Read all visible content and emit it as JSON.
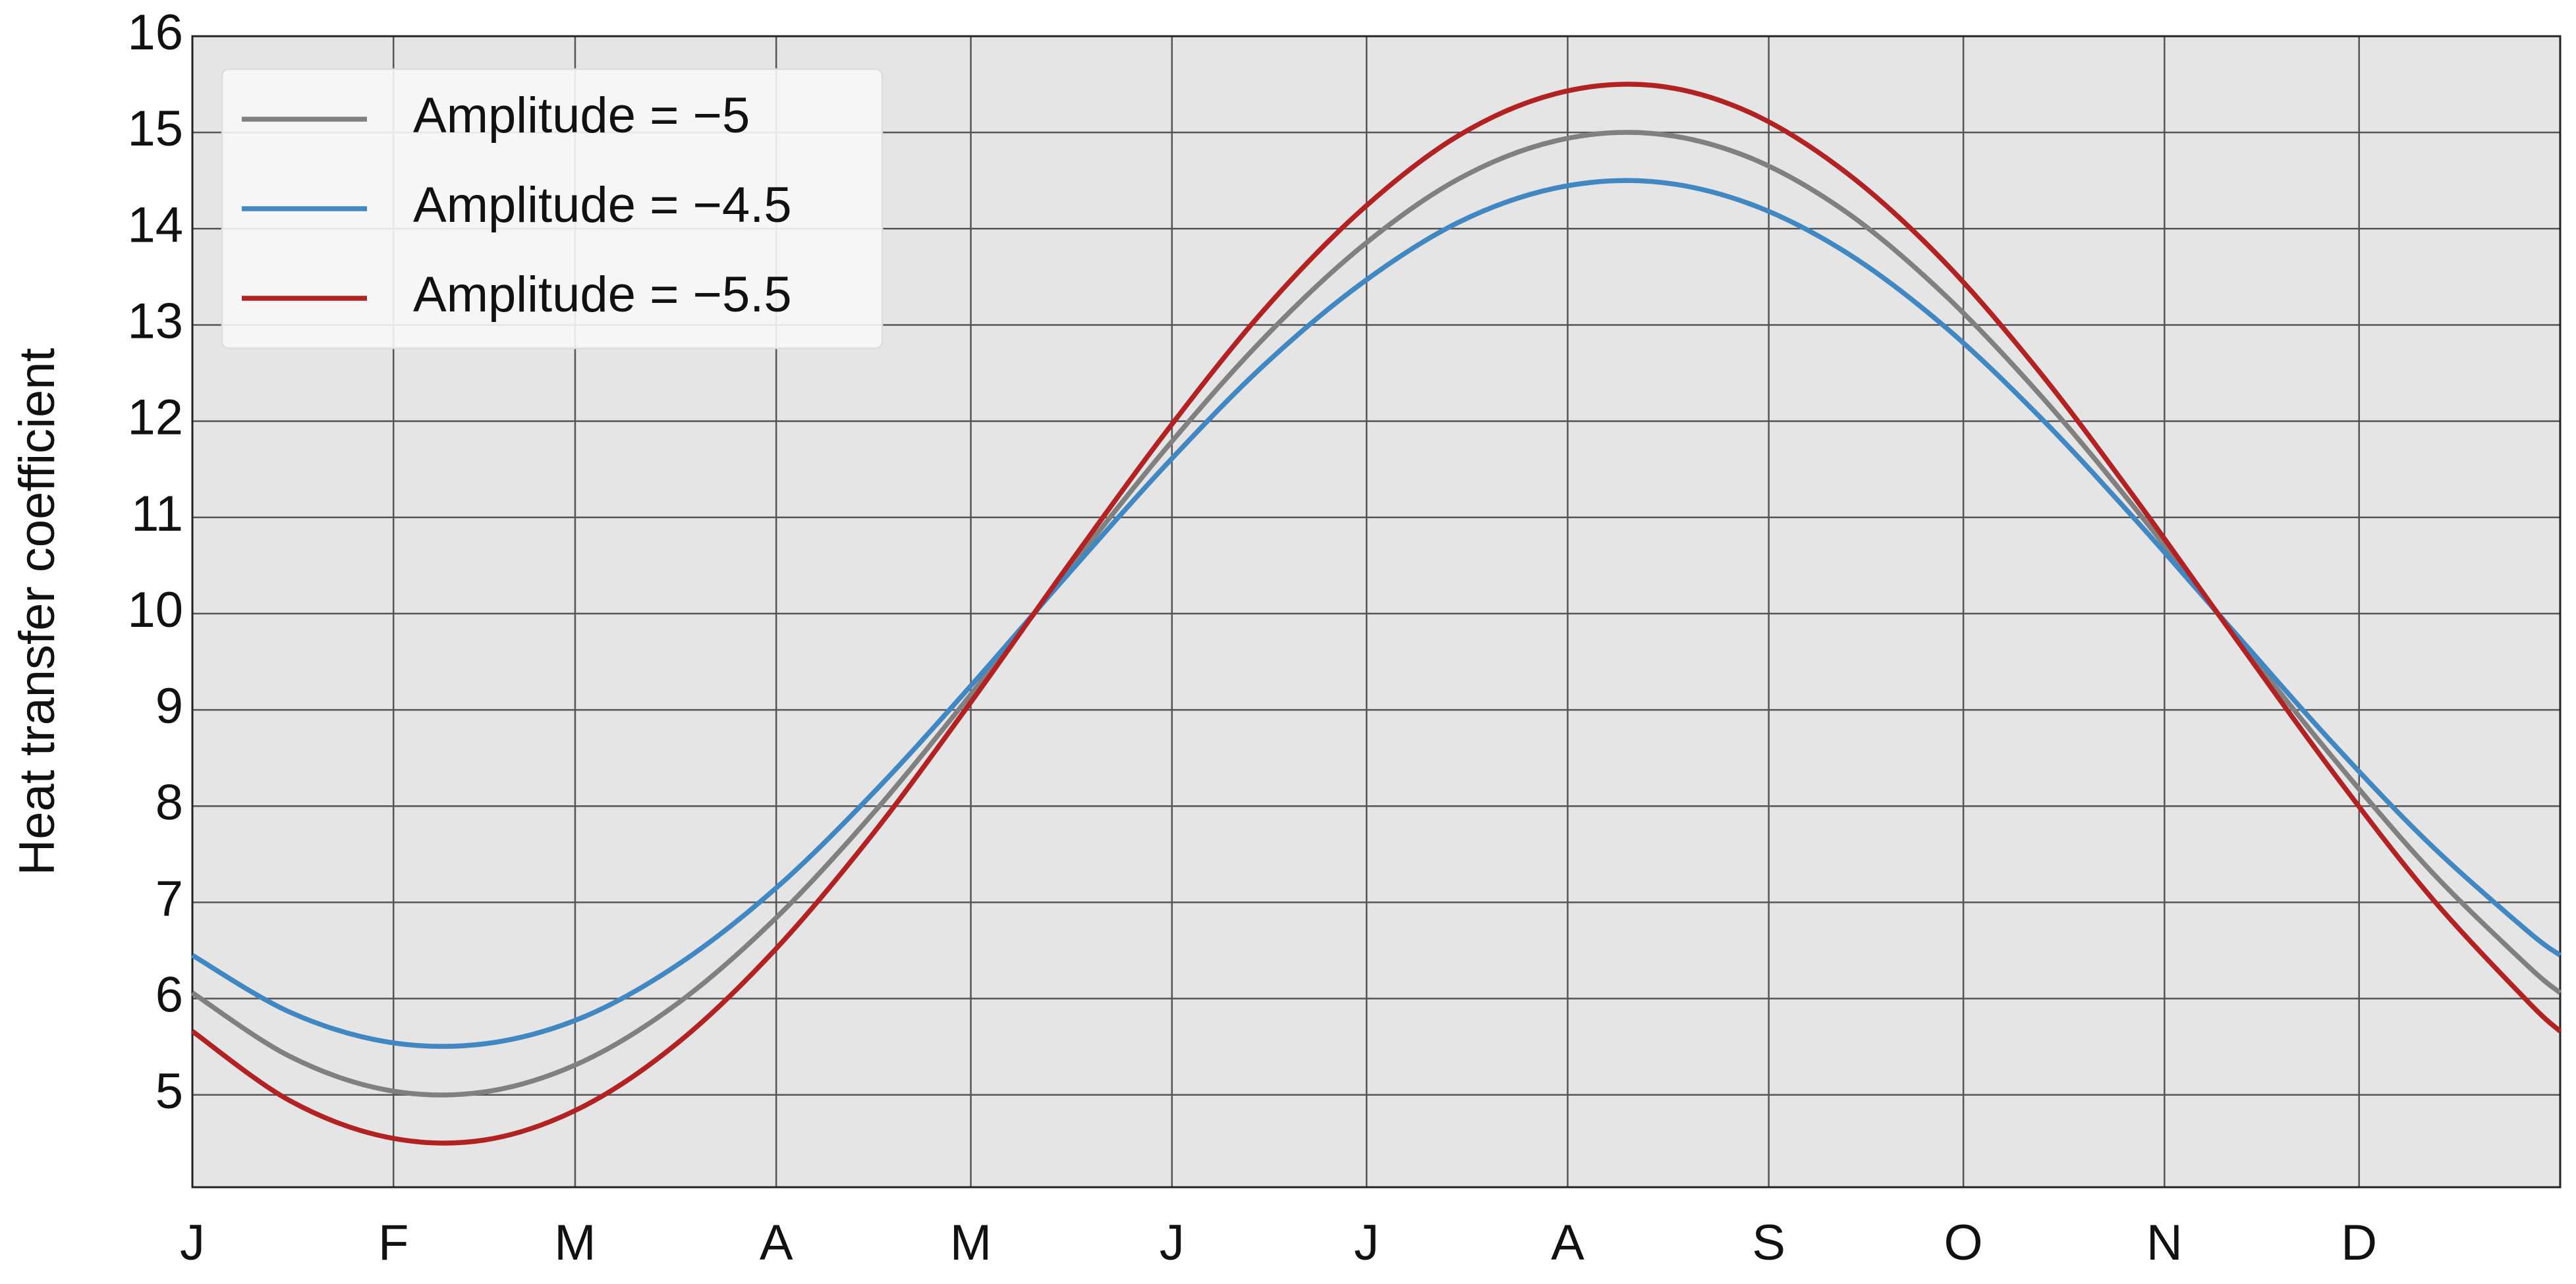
{
  "chart_data": {
    "type": "line",
    "ylabel": "Heat transfer coefficient",
    "x": [
      0,
      15,
      30,
      45,
      60,
      75,
      90,
      105,
      120,
      135,
      150,
      165,
      180,
      195,
      210,
      225,
      240,
      255,
      270,
      285,
      300,
      315,
      330,
      345,
      360,
      365
    ],
    "series": [
      {
        "name": "Amplitude = −5",
        "color": "#808080",
        "values": [
          6.06,
          5.4,
          5.05,
          5.03,
          5.34,
          5.96,
          6.84,
          7.93,
          9.16,
          10.45,
          11.71,
          12.85,
          13.8,
          14.51,
          14.91,
          14.99,
          14.74,
          14.17,
          13.32,
          12.26,
          11.05,
          9.76,
          8.5,
          7.33,
          6.34,
          6.06
        ]
      },
      {
        "name": "Amplitude = −4.5",
        "color": "#4187c2",
        "values": [
          6.45,
          5.86,
          5.55,
          5.53,
          5.8,
          6.36,
          7.15,
          8.14,
          9.25,
          10.41,
          11.54,
          12.57,
          13.42,
          14.06,
          14.42,
          14.49,
          14.26,
          13.75,
          12.99,
          12.03,
          10.94,
          9.79,
          8.65,
          7.6,
          6.7,
          6.45
        ]
      },
      {
        "name": "Amplitude = −5.5",
        "color": "#b22222",
        "values": [
          5.66,
          4.94,
          4.56,
          4.53,
          4.87,
          5.55,
          6.52,
          7.72,
          9.08,
          10.5,
          11.88,
          13.14,
          14.18,
          14.96,
          15.4,
          15.49,
          15.21,
          14.58,
          13.66,
          12.49,
          11.15,
          9.74,
          8.35,
          7.06,
          5.97,
          5.66
        ]
      }
    ],
    "xlim": [
      0,
      365
    ],
    "xticks": [
      {
        "value": 0,
        "label": "J"
      },
      {
        "value": 31,
        "label": "F"
      },
      {
        "value": 59,
        "label": "M"
      },
      {
        "value": 90,
        "label": "A"
      },
      {
        "value": 120,
        "label": "M"
      },
      {
        "value": 151,
        "label": "J"
      },
      {
        "value": 181,
        "label": "J"
      },
      {
        "value": 212,
        "label": "A"
      },
      {
        "value": 243,
        "label": "S"
      },
      {
        "value": 273,
        "label": "O"
      },
      {
        "value": 304,
        "label": "N"
      },
      {
        "value": 334,
        "label": "D"
      }
    ],
    "ylim": [
      4.04,
      16
    ],
    "yticks": [
      5,
      6,
      7,
      8,
      9,
      10,
      11,
      12,
      13,
      14,
      15,
      16
    ],
    "grid": true,
    "legend": "upper-left"
  }
}
